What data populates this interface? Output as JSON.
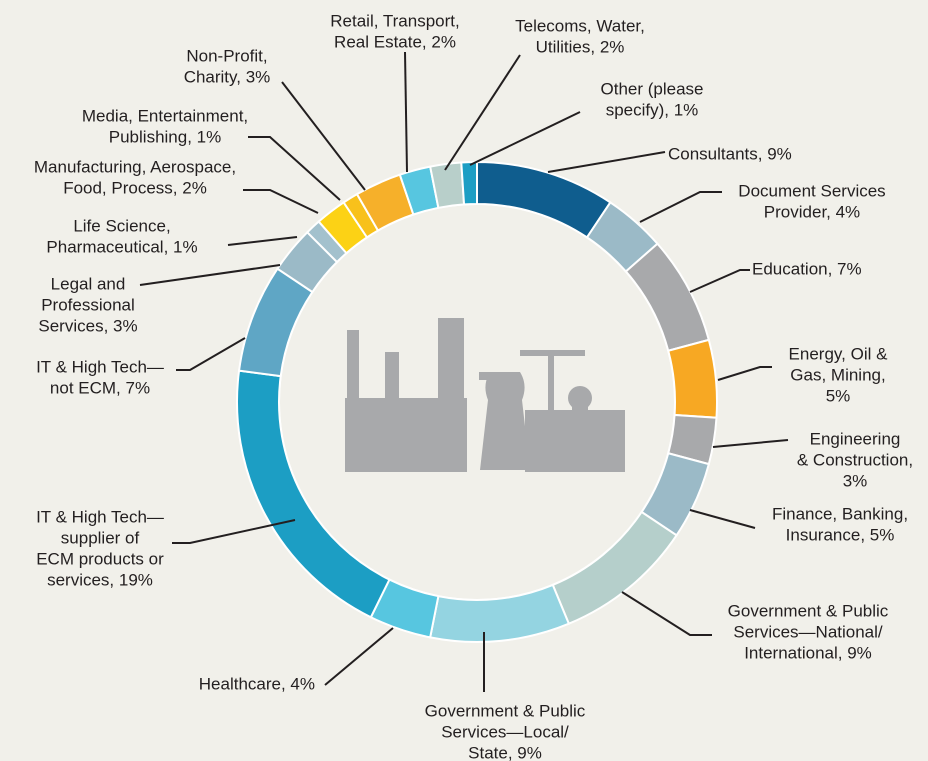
{
  "chart_data": {
    "type": "donut",
    "categories": [
      [
        "Consultants, 9%"
      ],
      [
        "Document Services",
        "Provider, 4%"
      ],
      [
        "Education, 7%"
      ],
      [
        "Energy, Oil &",
        "Gas, Mining,",
        "5%"
      ],
      [
        "Engineering",
        "& Construction,",
        "3%"
      ],
      [
        "Finance, Banking,",
        "Insurance, 5%"
      ],
      [
        "Government & Public",
        "Services—National/",
        "International, 9%"
      ],
      [
        "Government & Public",
        "Services—Local/",
        "State, 9%"
      ],
      [
        "Healthcare, 4%"
      ],
      [
        "IT & High Tech—",
        "supplier of",
        "ECM products or",
        "services, 19%"
      ],
      [
        "IT & High Tech—",
        "not ECM, 7%"
      ],
      [
        "Legal and",
        "Professional",
        "Services, 3%"
      ],
      [
        "Life Science,",
        "Pharmaceutical, 1%"
      ],
      [
        "Manufacturing, Aerospace,",
        "Food, Process, 2%"
      ],
      [
        "Media, Entertainment,",
        "Publishing, 1%"
      ],
      [
        "Non-Profit,",
        "Charity, 3%"
      ],
      [
        "Retail, Transport,",
        "Real Estate, 2%"
      ],
      [
        "Telecoms, Water,",
        "Utilities, 2%"
      ],
      [
        "Other (please",
        "specify), 1%"
      ]
    ],
    "values": [
      9,
      4,
      7,
      5,
      3,
      5,
      9,
      9,
      4,
      19,
      7,
      3,
      1,
      2,
      1,
      3,
      2,
      2,
      1
    ],
    "colors": [
      "#0f5d8e",
      "#9bbac7",
      "#a8a9ab",
      "#f7a823",
      "#a8a9ab",
      "#9bbac7",
      "#b5cfcb",
      "#94d4e1",
      "#57c6e0",
      "#1c9ec4",
      "#5fa6c5",
      "#9bbac7",
      "#a3c1cd",
      "#fcd215",
      "#f8c11b",
      "#f6b02a",
      "#57c6e0",
      "#b8cfca",
      "#1c9ec4"
    ]
  }
}
